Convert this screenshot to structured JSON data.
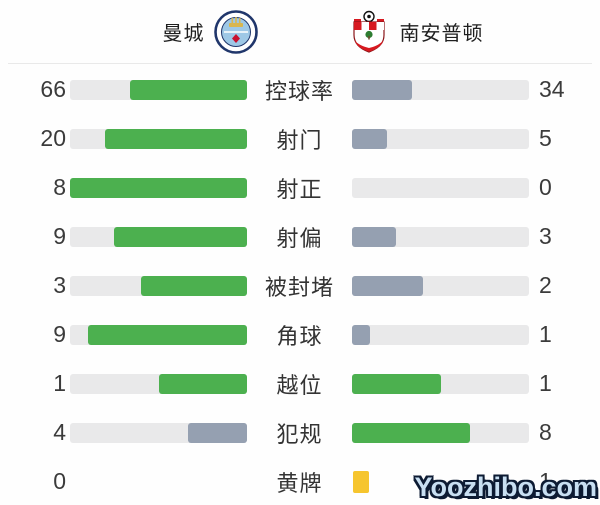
{
  "header": {
    "home": {
      "name": "曼城"
    },
    "away": {
      "name": "南安普顿"
    }
  },
  "colors": {
    "green": "#4cb04f",
    "gray": "#95a0b1",
    "track": "#e9e9ea",
    "yellow_card": "#f6c52e"
  },
  "stats": [
    {
      "label": "控球率",
      "home": "66",
      "away": "34",
      "home_pct": 66,
      "away_pct": 34,
      "home_color": "green",
      "away_color": "gray",
      "type": "bar"
    },
    {
      "label": "射门",
      "home": "20",
      "away": "5",
      "home_pct": 80,
      "away_pct": 20,
      "home_color": "green",
      "away_color": "gray",
      "type": "bar"
    },
    {
      "label": "射正",
      "home": "8",
      "away": "0",
      "home_pct": 100,
      "away_pct": 0,
      "home_color": "green",
      "away_color": "gray",
      "type": "bar"
    },
    {
      "label": "射偏",
      "home": "9",
      "away": "3",
      "home_pct": 75,
      "away_pct": 25,
      "home_color": "green",
      "away_color": "gray",
      "type": "bar"
    },
    {
      "label": "被封堵",
      "home": "3",
      "away": "2",
      "home_pct": 60,
      "away_pct": 40,
      "home_color": "green",
      "away_color": "gray",
      "type": "bar"
    },
    {
      "label": "角球",
      "home": "9",
      "away": "1",
      "home_pct": 90,
      "away_pct": 10,
      "home_color": "green",
      "away_color": "gray",
      "type": "bar"
    },
    {
      "label": "越位",
      "home": "1",
      "away": "1",
      "home_pct": 50,
      "away_pct": 50,
      "home_color": "green",
      "away_color": "green",
      "type": "bar"
    },
    {
      "label": "犯规",
      "home": "4",
      "away": "8",
      "home_pct": 33.3,
      "away_pct": 66.7,
      "home_color": "gray",
      "away_color": "green",
      "type": "bar"
    },
    {
      "label": "黄牌",
      "home": "0",
      "away": "1",
      "home_cards": 0,
      "away_cards": 1,
      "type": "cards"
    }
  ],
  "watermark": {
    "text": "Yoozhibo.com"
  }
}
